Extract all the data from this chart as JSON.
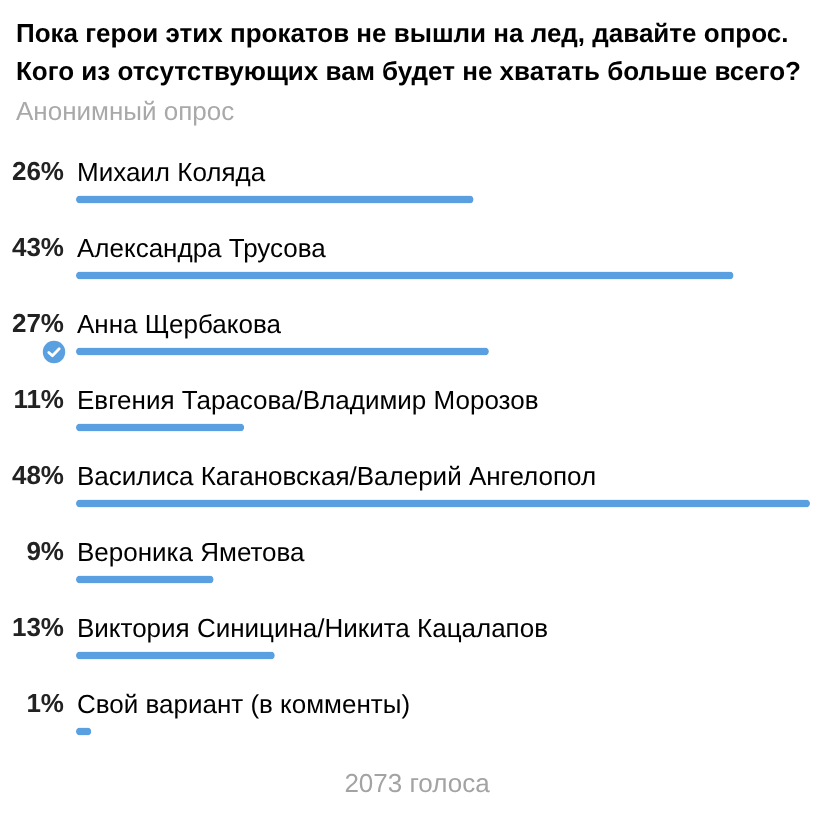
{
  "chart_data": {
    "type": "bar",
    "orientation": "horizontal",
    "title": "Пока герои этих прокатов не вышли на лед, давайте опрос. Кого из отсутствующих вам будет не хватать больше всего?",
    "subtitle": "Анонимный опрос",
    "categories": [
      "Михаил Коляда",
      "Александра Трусова",
      "Анна Щербакова",
      "Евгения Тарасова/Владимир Морозов",
      "Василиса Кагановская/Валерий Ангелопол",
      "Вероника Яметова",
      "Виктория Синицина/Никита Кацалапов",
      "Свой вариант (в комменты)"
    ],
    "values": [
      26,
      43,
      27,
      11,
      48,
      9,
      13,
      1
    ],
    "value_labels": [
      "26%",
      "43%",
      "27%",
      "11%",
      "48%",
      "9%",
      "13%",
      "1%"
    ],
    "color": "#5a9fdf",
    "annotations": [
      "2073 голоса"
    ]
  }
}
